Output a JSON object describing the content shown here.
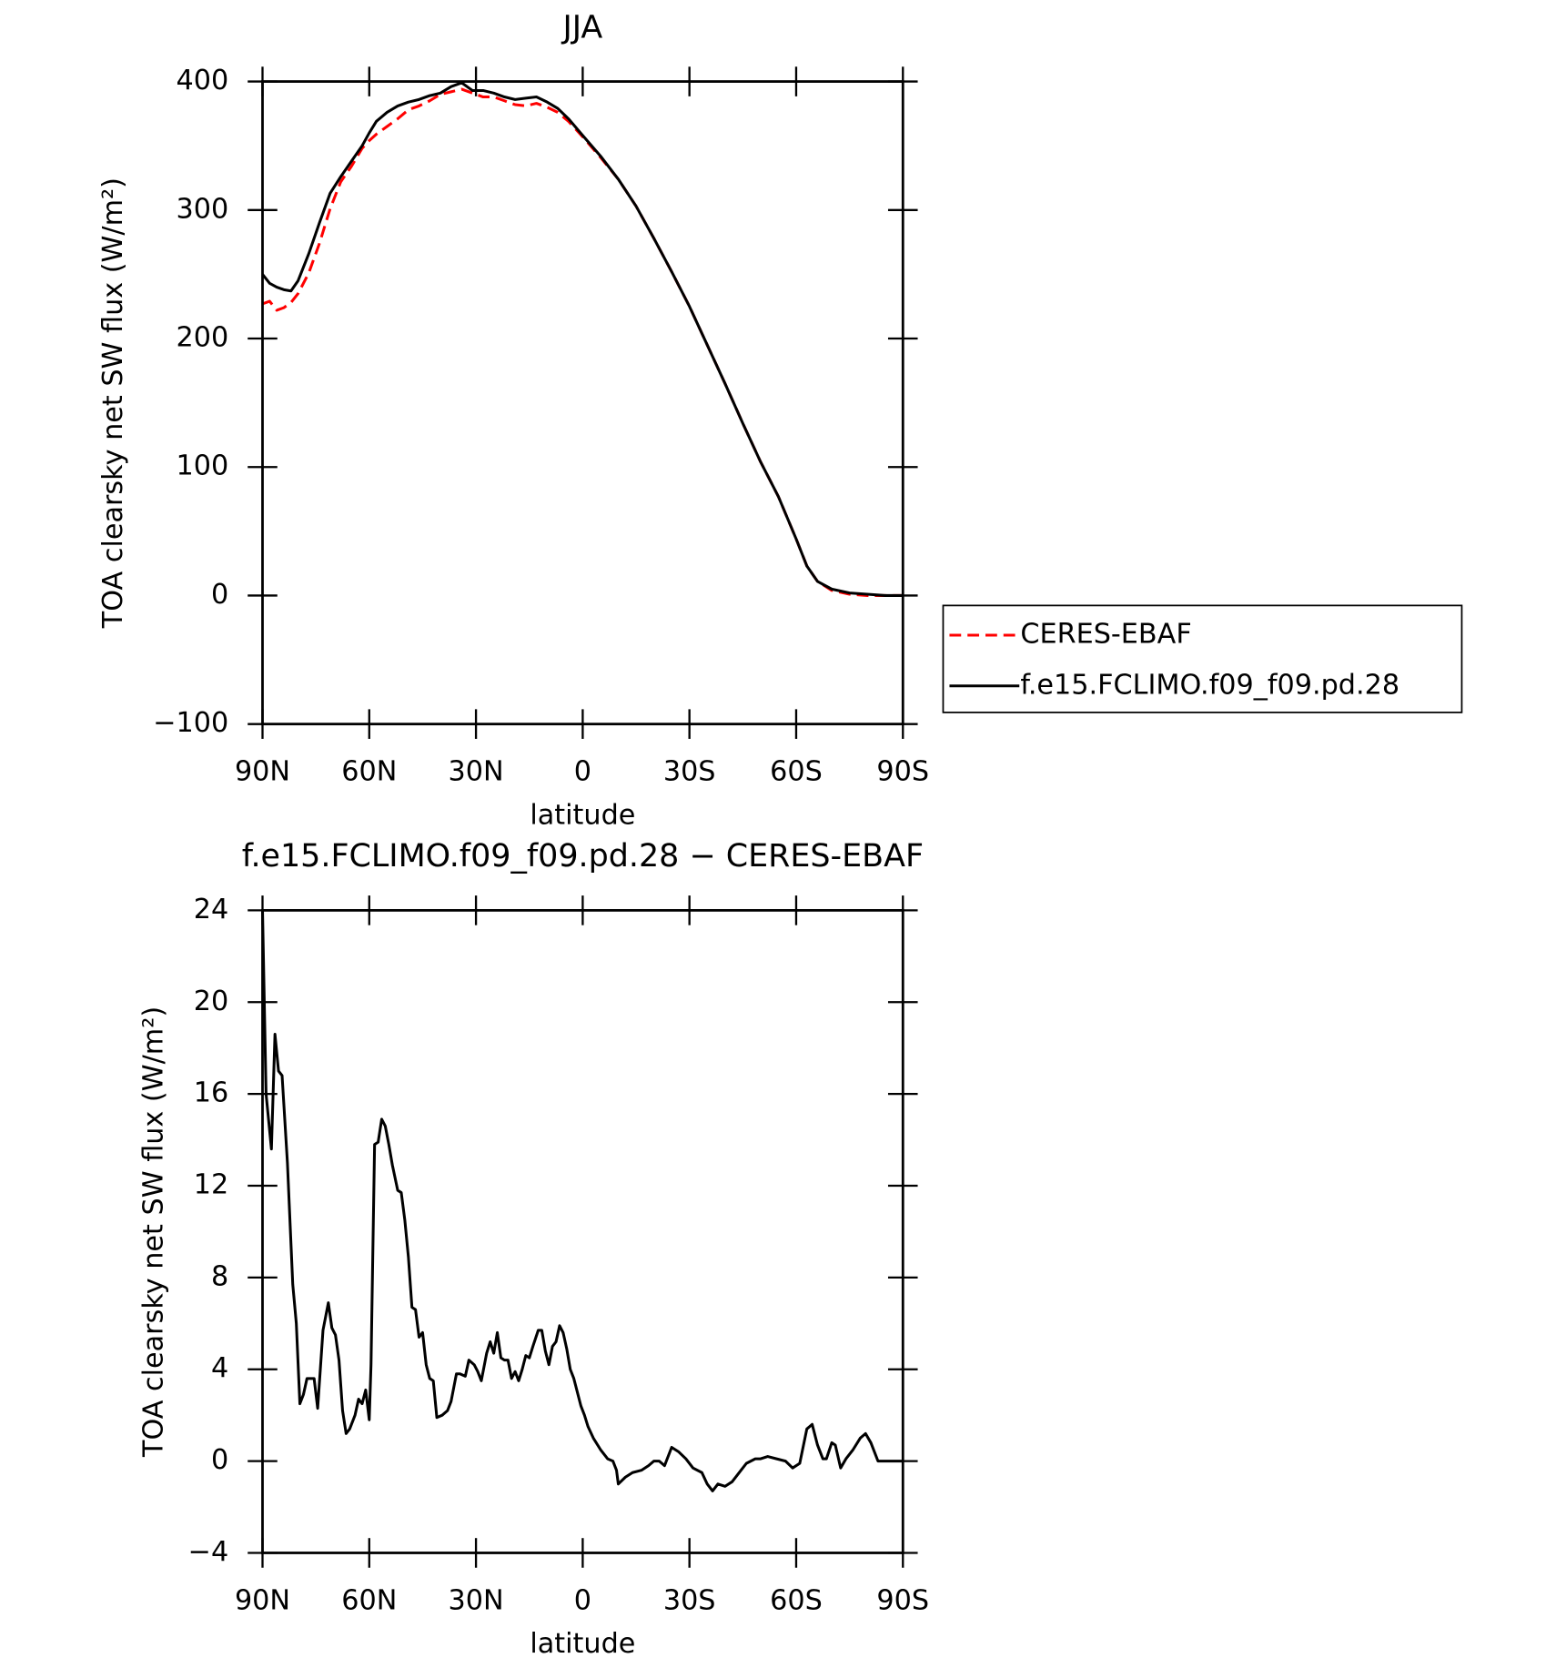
{
  "chart_data": [
    {
      "type": "line",
      "title": "JJA",
      "xlabel": "latitude",
      "ylabel": "TOA clearsky net SW flux (W/m²)",
      "x": [
        90,
        88,
        86,
        84,
        82,
        80,
        77,
        74,
        71,
        68,
        65,
        62,
        60,
        58,
        55,
        52,
        49,
        46,
        43,
        40,
        37,
        34,
        31,
        28,
        25,
        22,
        19,
        16,
        13,
        10,
        7,
        4,
        0,
        -5,
        -10,
        -15,
        -20,
        -25,
        -30,
        -35,
        -40,
        -45,
        -50,
        -55,
        -60,
        -63,
        -66,
        -70,
        -75,
        -80,
        -85,
        -90
      ],
      "series": [
        {
          "name": "CERES-EBAF",
          "color": "#ff0000",
          "dash": "dashed",
          "values": [
            227,
            229,
            222,
            224,
            228,
            235,
            251,
            274,
            301,
            322,
            334,
            348,
            354,
            359,
            365,
            371,
            378,
            381,
            385,
            390,
            392,
            394,
            391,
            388,
            388,
            385,
            382,
            381,
            383,
            380,
            376,
            369,
            357,
            341,
            324,
            303,
            278,
            252,
            225,
            195,
            165,
            134,
            104,
            77,
            44,
            23,
            11,
            4,
            1,
            0,
            0,
            0
          ]
        },
        {
          "name": "f.e15.FCLIMO.f09_f09.pd.28",
          "color": "#000000",
          "dash": "solid",
          "values": [
            250,
            243,
            240,
            238,
            237,
            245,
            266,
            290,
            313,
            326,
            338,
            350,
            360,
            369,
            376,
            381,
            384,
            386,
            389,
            391,
            396,
            399,
            393,
            393,
            391,
            388,
            386,
            387,
            388,
            384,
            379,
            371,
            358,
            342,
            324,
            303,
            278,
            252,
            225,
            195,
            165,
            134,
            104,
            77,
            44,
            23,
            11,
            5,
            2,
            1,
            0,
            0
          ]
        }
      ],
      "xlim": [
        90,
        -90
      ],
      "xticks": [
        {
          "value": 90,
          "label": "90N"
        },
        {
          "value": 60,
          "label": "60N"
        },
        {
          "value": 30,
          "label": "30N"
        },
        0,
        {
          "value": -30,
          "label": "30S"
        },
        {
          "value": -60,
          "label": "60S"
        },
        {
          "value": -90,
          "label": "90S"
        }
      ],
      "ylim": [
        -100,
        400
      ],
      "yticks": [
        {
          "value": -100,
          "label": "−100"
        },
        0,
        100,
        200,
        300,
        400
      ],
      "legend": "outside-right"
    },
    {
      "type": "line",
      "title": "f.e15.FCLIMO.f09_f09.pd.28 − CERES-EBAF",
      "xlabel": "latitude",
      "ylabel": "TOA clearsky net SW flux (W/m²)",
      "x": [
        90,
        89,
        87.5,
        86.5,
        85.5,
        84.5,
        83,
        81.5,
        80.5,
        79.5,
        78.5,
        77.5,
        75.5,
        74.5,
        73,
        71.5,
        70.5,
        69.5,
        68.5,
        67.5,
        66.5,
        65.5,
        64,
        63,
        62,
        61,
        60,
        59.5,
        58.5,
        57.5,
        56.5,
        55.5,
        54.5,
        53.5,
        52,
        51,
        50,
        49,
        48,
        47,
        46,
        45,
        44,
        43,
        42,
        41,
        39.5,
        38,
        37,
        35.5,
        34.5,
        33,
        32,
        30.5,
        29.5,
        28.5,
        27,
        26,
        25,
        24,
        23,
        22,
        21,
        20,
        19,
        18,
        17,
        16,
        15,
        14,
        12.5,
        11.5,
        10.5,
        9.5,
        8.5,
        7.5,
        6.5,
        5.5,
        4.5,
        3.5,
        2.5,
        1.5,
        0.5,
        -0.5,
        -1.5,
        -3,
        -5,
        -7,
        -8.5,
        -9.5,
        -10,
        -12,
        -14,
        -16.5,
        -18.5,
        -20,
        -21.5,
        -23,
        -25,
        -27,
        -29,
        -31,
        -33.5,
        -35,
        -36.5,
        -38,
        -40,
        -42,
        -44,
        -46,
        -48.5,
        -50,
        -52,
        -54.5,
        -57,
        -59,
        -61,
        -63,
        -64.5,
        -66,
        -67.5,
        -68.5,
        -70,
        -71,
        -72.5,
        -74,
        -76,
        -78,
        -79.5,
        -81,
        -83,
        -84.5,
        -90
      ],
      "values": [
        24,
        16,
        13.6,
        18.6,
        17,
        16.8,
        13,
        7.7,
        6,
        2.5,
        2.9,
        3.6,
        3.6,
        2.3,
        5.7,
        6.9,
        5.8,
        5.5,
        4.4,
        2.2,
        1.2,
        1.4,
        2.0,
        2.7,
        2.5,
        3.1,
        1.8,
        4.2,
        13.8,
        13.9,
        14.9,
        14.6,
        13.8,
        12.9,
        11.8,
        11.7,
        10.5,
        8.9,
        6.7,
        6.6,
        5.4,
        5.6,
        4.2,
        3.6,
        3.5,
        1.9,
        2.0,
        2.2,
        2.6,
        3.8,
        3.8,
        3.7,
        4.4,
        4.2,
        3.9,
        3.5,
        4.7,
        5.2,
        4.7,
        5.6,
        4.5,
        4.4,
        4.4,
        3.6,
        3.9,
        3.5,
        4.0,
        4.6,
        4.5,
        5.0,
        5.7,
        5.7,
        4.8,
        4.2,
        5.0,
        5.2,
        5.9,
        5.6,
        4.9,
        4.0,
        3.6,
        3.0,
        2.4,
        2.0,
        1.5,
        1.0,
        0.5,
        0.1,
        0.0,
        -0.4,
        -1.0,
        -0.7,
        -0.5,
        -0.4,
        -0.2,
        0.0,
        0.0,
        -0.2,
        0.6,
        0.4,
        0.1,
        -0.3,
        -0.5,
        -1.0,
        -1.3,
        -1.0,
        -1.1,
        -0.9,
        -0.5,
        -0.1,
        0.1,
        0.1,
        0.2,
        0.1,
        0.0,
        -0.3,
        -0.1,
        1.4,
        1.6,
        0.7,
        0.1,
        0.1,
        0.8,
        0.7,
        -0.3,
        0.1,
        0.5,
        1.0,
        1.2,
        0.8,
        0,
        0,
        0
      ],
      "color": "#000000",
      "xlim": [
        90,
        -90
      ],
      "xticks": [
        {
          "value": 90,
          "label": "90N"
        },
        {
          "value": 60,
          "label": "60N"
        },
        {
          "value": 30,
          "label": "30N"
        },
        0,
        {
          "value": -30,
          "label": "30S"
        },
        {
          "value": -60,
          "label": "60S"
        },
        {
          "value": -90,
          "label": "90S"
        }
      ],
      "ylim": [
        -4,
        24
      ],
      "yticks": [
        {
          "value": -4,
          "label": "−4"
        },
        0,
        4,
        8,
        12,
        16,
        20,
        24
      ]
    }
  ]
}
